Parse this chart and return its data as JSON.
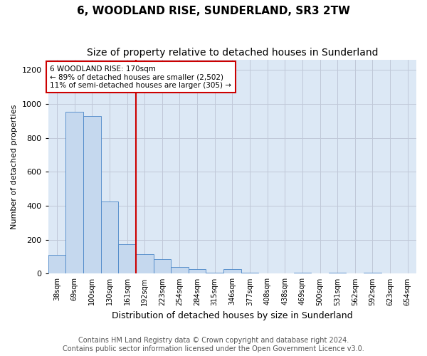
{
  "title": "6, WOODLAND RISE, SUNDERLAND, SR3 2TW",
  "subtitle": "Size of property relative to detached houses in Sunderland",
  "xlabel": "Distribution of detached houses by size in Sunderland",
  "ylabel": "Number of detached properties",
  "categories": [
    "38sqm",
    "69sqm",
    "100sqm",
    "130sqm",
    "161sqm",
    "192sqm",
    "223sqm",
    "254sqm",
    "284sqm",
    "315sqm",
    "346sqm",
    "377sqm",
    "408sqm",
    "438sqm",
    "469sqm",
    "500sqm",
    "531sqm",
    "562sqm",
    "592sqm",
    "623sqm",
    "654sqm"
  ],
  "values": [
    110,
    955,
    930,
    425,
    175,
    115,
    85,
    40,
    27,
    5,
    27,
    5,
    0,
    0,
    5,
    0,
    5,
    0,
    5,
    0,
    0
  ],
  "bar_color": "#c5d8ee",
  "bar_edge_color": "#4a86c8",
  "vline_pos": 4.5,
  "vline_color": "#cc0000",
  "annotation_text": "6 WOODLAND RISE: 170sqm\n← 89% of detached houses are smaller (2,502)\n11% of semi-detached houses are larger (305) →",
  "annotation_box_color": "#ffffff",
  "annotation_box_edge": "#cc0000",
  "ylim": [
    0,
    1260
  ],
  "yticks": [
    0,
    200,
    400,
    600,
    800,
    1000,
    1200
  ],
  "footer": "Contains HM Land Registry data © Crown copyright and database right 2024.\nContains public sector information licensed under the Open Government Licence v3.0.",
  "fig_bg_color": "#ffffff",
  "plot_bg_color": "#dce8f5",
  "title_fontsize": 11,
  "subtitle_fontsize": 10,
  "ylabel_fontsize": 8,
  "xlabel_fontsize": 9,
  "tick_fontsize": 7,
  "annot_fontsize": 7.5,
  "footer_fontsize": 7
}
